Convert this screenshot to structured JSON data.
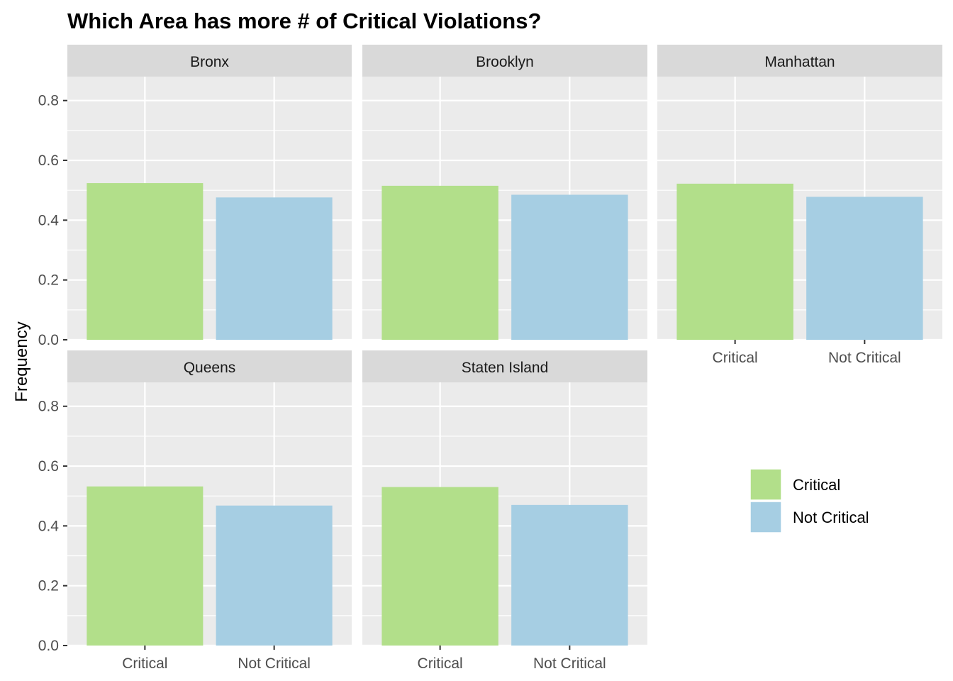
{
  "chart_data": {
    "type": "bar",
    "title": "Which Area has more # of Critical Violations?",
    "xlabel": "",
    "ylabel": "Frequency",
    "ylim": [
      0,
      0.88
    ],
    "yticks": [
      "0.0",
      "0.2",
      "0.4",
      "0.6",
      "0.8"
    ],
    "yticks_values": [
      0,
      0.2,
      0.4,
      0.6,
      0.8
    ],
    "categories": [
      "Critical",
      "Not Critical"
    ],
    "grid": true,
    "legend_position": "right",
    "colors": {
      "Critical": "#b2df8a",
      "Not Critical": "#a6cee3"
    },
    "panel_background": "#ebebeb",
    "strip_background": "#d9d9d9",
    "facets": [
      {
        "name": "Bronx",
        "values": [
          0.524,
          0.476
        ]
      },
      {
        "name": "Brooklyn",
        "values": [
          0.515,
          0.485
        ]
      },
      {
        "name": "Manhattan",
        "values": [
          0.522,
          0.478
        ]
      },
      {
        "name": "Queens",
        "values": [
          0.532,
          0.468
        ]
      },
      {
        "name": "Staten Island",
        "values": [
          0.53,
          0.47
        ]
      }
    ],
    "legend": [
      {
        "label": "Critical",
        "color": "#b2df8a"
      },
      {
        "label": "Not Critical",
        "color": "#a6cee3"
      }
    ]
  }
}
